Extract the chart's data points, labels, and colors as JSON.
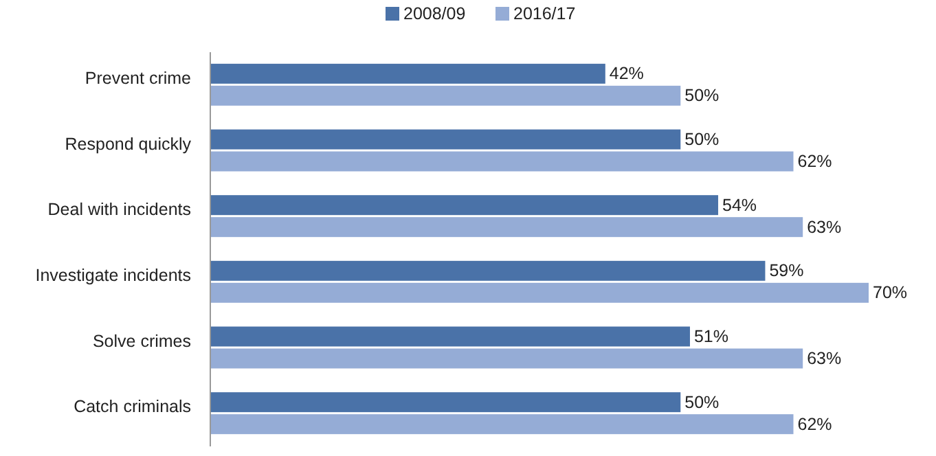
{
  "chart_data": {
    "type": "bar",
    "orientation": "horizontal",
    "categories": [
      "Prevent crime",
      "Respond quickly",
      "Deal with incidents",
      "Investigate incidents",
      "Solve crimes",
      "Catch criminals"
    ],
    "series": [
      {
        "name": "2008/09",
        "color": "#4a72a8",
        "values": [
          42,
          50,
          54,
          59,
          51,
          50
        ],
        "value_labels": [
          "42%",
          "50%",
          "54%",
          "59%",
          "51%",
          "50%"
        ]
      },
      {
        "name": "2016/17",
        "color": "#95acd6",
        "values": [
          50,
          62,
          63,
          70,
          63,
          62
        ],
        "value_labels": [
          "50%",
          "62%",
          "63%",
          "70%",
          "63%",
          "62%"
        ]
      }
    ],
    "legend": "top"
  }
}
